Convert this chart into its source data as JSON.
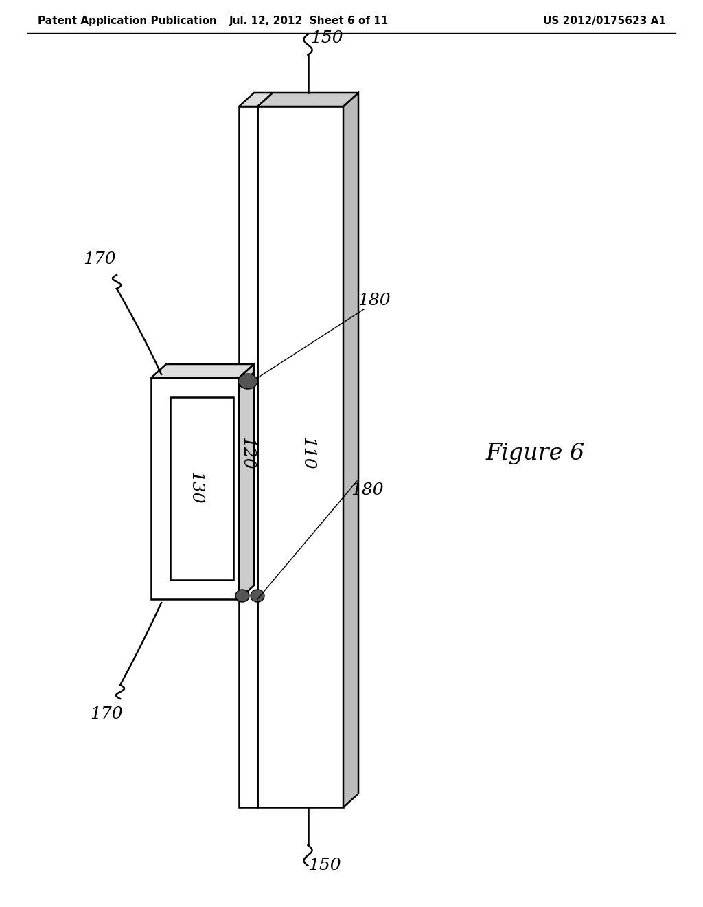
{
  "title_left": "Patent Application Publication",
  "title_center": "Jul. 12, 2012  Sheet 6 of 11",
  "title_right": "US 2012/0175623 A1",
  "figure_label": "Figure 6",
  "bg_color": "#ffffff",
  "line_color": "#000000",
  "header_fontsize": 11,
  "label_fontsize": 18,
  "figure_fontsize": 24,
  "lw_main": 1.8
}
